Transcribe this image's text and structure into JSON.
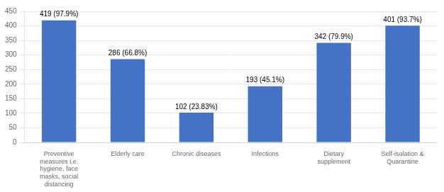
{
  "chart_data": {
    "type": "bar",
    "categories": [
      "Preventive\nmeasures i.e.\nhygiene, face\nmasks, social\ndistancing",
      "Elderly care",
      "Chronic diseases",
      "Infections",
      "Dietary\nsupplement",
      "Self-isolation &\nQuarantine"
    ],
    "values": [
      419,
      286,
      102,
      193,
      342,
      401
    ],
    "value_labels": [
      "419 (97.9%)",
      "286 (66.8%)",
      "102 (23.83%)",
      "193 (45.1%)",
      "342 (79.9%)",
      "401 (93.7%)"
    ],
    "data_labels": true,
    "color": "#4472C4",
    "ylim": [
      0,
      450
    ],
    "yticks": [
      0,
      50,
      100,
      150,
      200,
      250,
      300,
      350,
      400,
      450
    ],
    "grid": true
  }
}
